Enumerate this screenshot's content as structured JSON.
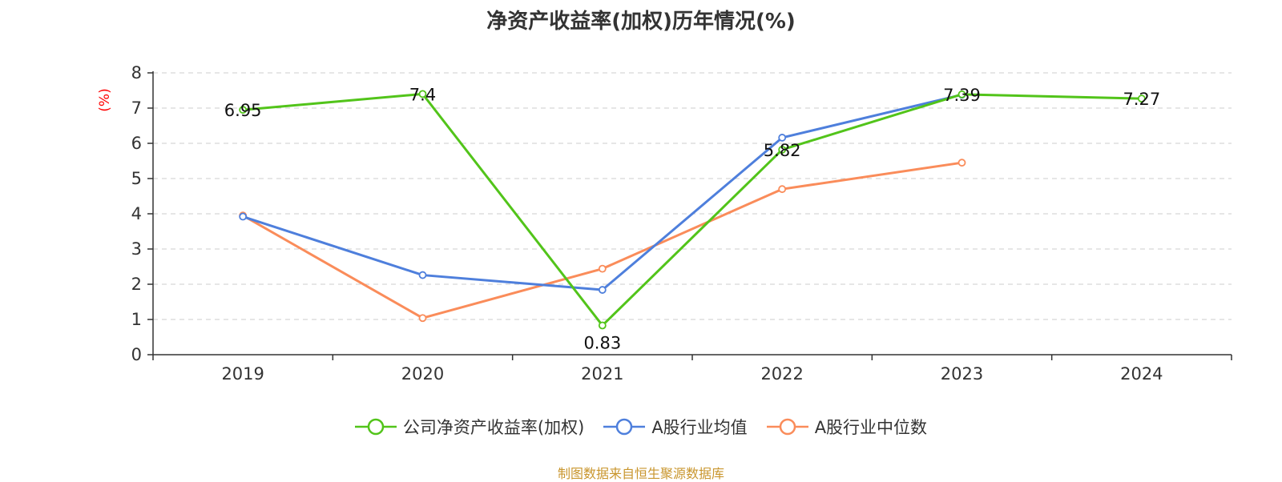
{
  "chart_data": {
    "type": "line",
    "title": "净资产收益率(加权)历年情况(%)",
    "ylabel": "(%)",
    "xlabel": "",
    "categories": [
      "2019",
      "2020",
      "2021",
      "2022",
      "2023",
      "2024"
    ],
    "ylim": [
      0,
      8
    ],
    "yticks": [
      0,
      1,
      2,
      3,
      4,
      5,
      6,
      7,
      8
    ],
    "grid": true,
    "legend_position": "bottom",
    "series": [
      {
        "name": "公司净资产收益率(加权)",
        "color": "#52c41a",
        "values": [
          6.95,
          7.4,
          0.83,
          5.82,
          7.39,
          7.27
        ],
        "labels": [
          "6.95",
          "7.4",
          "0.83",
          "5.82",
          "7.39",
          "7.27"
        ]
      },
      {
        "name": "A股行业均值",
        "color": "#4e7fdc",
        "values": [
          3.92,
          2.26,
          1.84,
          6.16,
          7.38,
          null
        ]
      },
      {
        "name": "A股行业中位数",
        "color": "#fa8c5a",
        "values": [
          3.95,
          1.04,
          2.44,
          4.7,
          5.45,
          null
        ]
      }
    ]
  },
  "source": "制图数据来自恒生聚源数据库"
}
